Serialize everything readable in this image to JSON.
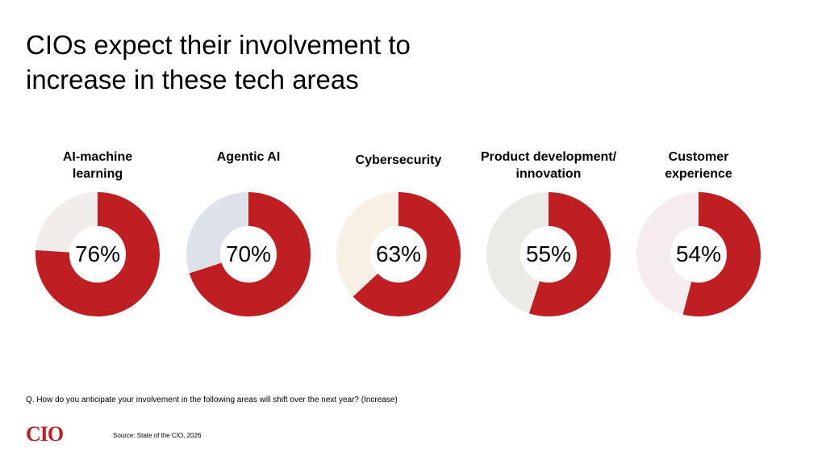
{
  "title": "CIOs expect their involvement to increase in these tech areas",
  "question": "Q. How do you anticipate your involvement in the following areas will shift over the next year? (Increase)",
  "source": "Source: State of the CIO, 2026",
  "logo": "CIO",
  "colors": {
    "accent": "#bf1e22"
  },
  "chart_data": {
    "type": "pie",
    "donut": true,
    "items": [
      {
        "label": "AI-machine learning",
        "label_lines": [
          "AI-machine",
          "learning"
        ],
        "value": 76,
        "display": "76%",
        "remainder_color": "#f0edea"
      },
      {
        "label": "Agentic AI",
        "label_lines": [
          "Agentic AI"
        ],
        "value": 70,
        "display": "70%",
        "remainder_color": "#dde3e8"
      },
      {
        "label": "Cybersecurity",
        "label_lines": [
          "Cybersecurity"
        ],
        "value": 63,
        "display": "63%",
        "remainder_color": "#f6f1e4"
      },
      {
        "label": "Product development/ innovation",
        "label_lines": [
          "Product development/",
          "innovation"
        ],
        "value": 55,
        "display": "55%",
        "remainder_color": "#eaeae7"
      },
      {
        "label": "Customer experience",
        "label_lines": [
          "Customer",
          "experience"
        ],
        "value": 54,
        "display": "54%",
        "remainder_color": "#f4ecee"
      }
    ]
  }
}
